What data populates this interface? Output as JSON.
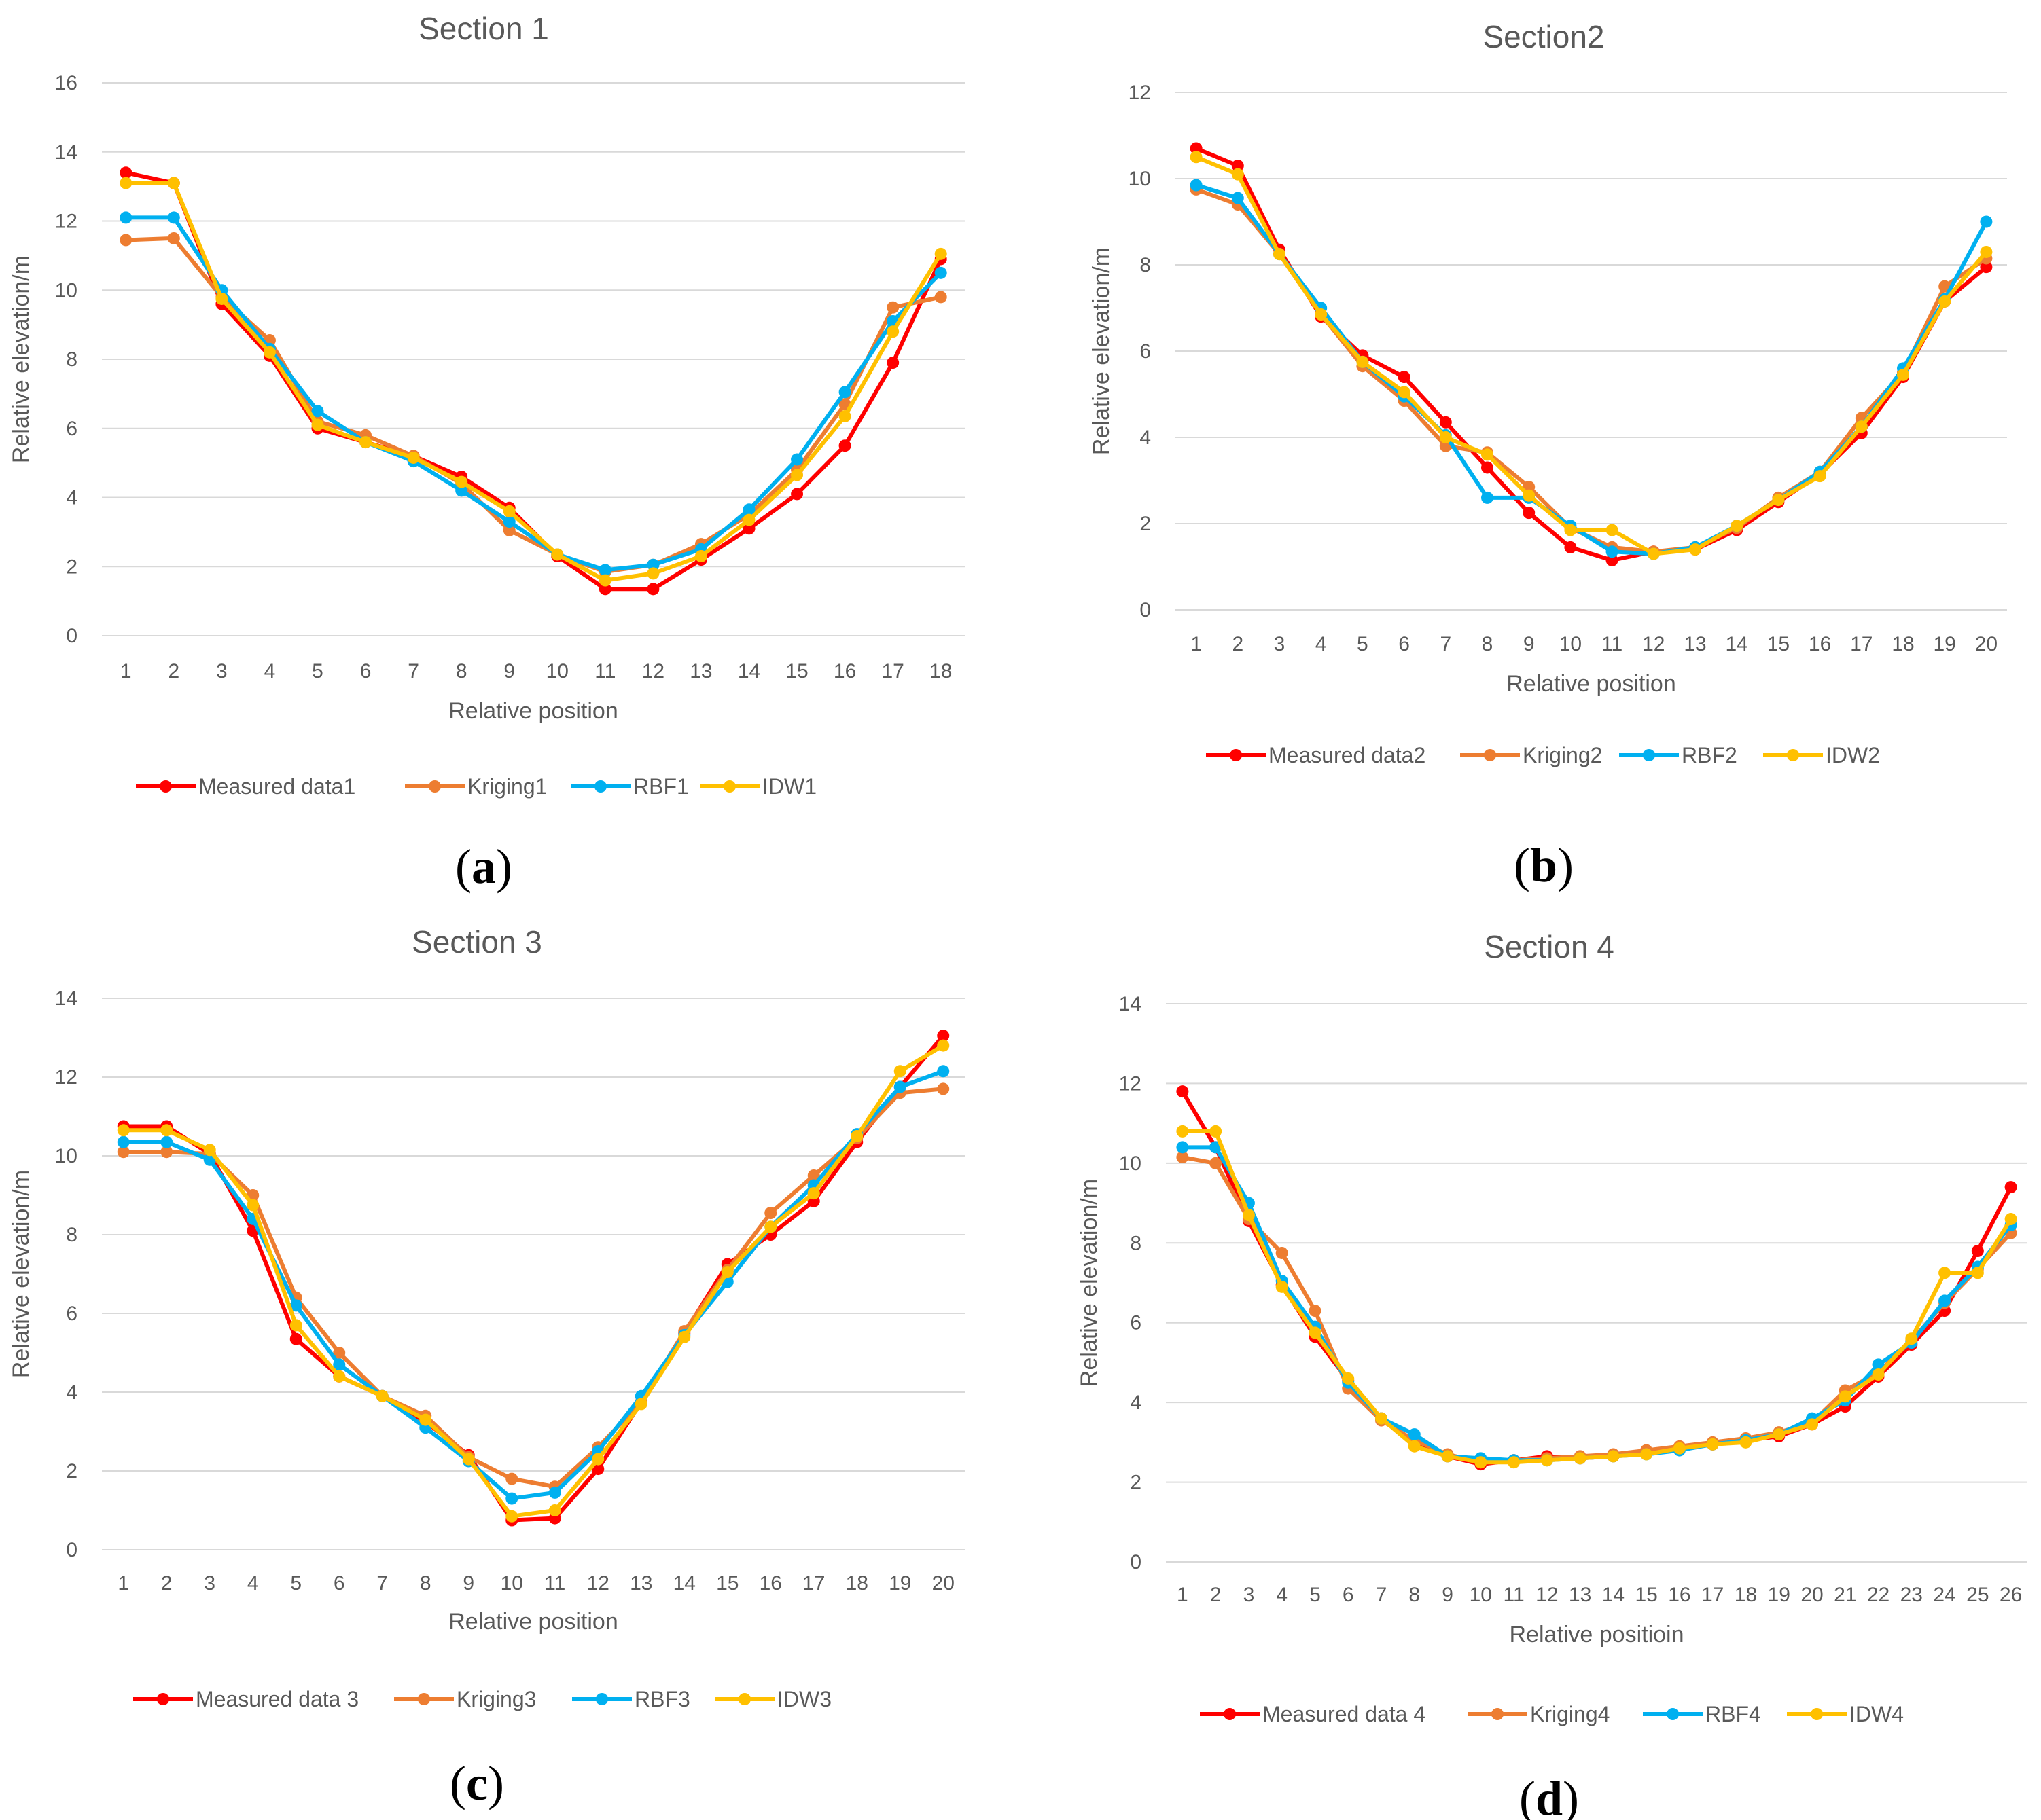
{
  "chart_data": [
    {
      "type": "line",
      "panel_label": "a",
      "title": "Section 1",
      "xlabel": "Relative position",
      "ylabel": "Relative elevation/m",
      "categories": [
        "1",
        "2",
        "3",
        "4",
        "5",
        "6",
        "7",
        "8",
        "9",
        "10",
        "11",
        "12",
        "13",
        "14",
        "15",
        "16",
        "17",
        "18"
      ],
      "yticks": [
        "0",
        "2",
        "4",
        "6",
        "8",
        "10",
        "12",
        "14",
        "16"
      ],
      "ylim": [
        0,
        16
      ],
      "grid": true,
      "legend": "bottom",
      "series": [
        {
          "name": "Measured data1",
          "color": "#ff0000",
          "values": [
            13.4,
            13.1,
            9.6,
            8.1,
            6.0,
            5.6,
            5.2,
            4.6,
            3.7,
            2.3,
            1.35,
            1.35,
            2.2,
            3.1,
            4.1,
            5.5,
            7.9,
            10.9
          ]
        },
        {
          "name": "Kriging1",
          "color": "#ed7d31",
          "values": [
            11.45,
            11.5,
            9.8,
            8.55,
            6.2,
            5.8,
            5.2,
            4.4,
            3.05,
            2.35,
            1.85,
            2.05,
            2.65,
            3.5,
            4.8,
            6.7,
            9.5,
            9.8
          ]
        },
        {
          "name": "RBF1",
          "color": "#00b0f0",
          "values": [
            12.1,
            12.1,
            10.0,
            8.3,
            6.5,
            5.6,
            5.05,
            4.2,
            3.3,
            2.35,
            1.9,
            2.05,
            2.5,
            3.65,
            5.1,
            7.05,
            9.1,
            10.5
          ]
        },
        {
          "name": "IDW1",
          "color": "#ffc000",
          "values": [
            13.1,
            13.1,
            9.75,
            8.2,
            6.1,
            5.6,
            5.15,
            4.45,
            3.6,
            2.35,
            1.6,
            1.8,
            2.3,
            3.35,
            4.65,
            6.35,
            8.8,
            11.05
          ]
        }
      ]
    },
    {
      "type": "line",
      "panel_label": "b",
      "title": "Section2",
      "xlabel": "Relative position",
      "ylabel": "Relative elevation/m",
      "categories": [
        "1",
        "2",
        "3",
        "4",
        "5",
        "6",
        "7",
        "8",
        "9",
        "10",
        "11",
        "12",
        "13",
        "14",
        "15",
        "16",
        "17",
        "18",
        "19",
        "20"
      ],
      "yticks": [
        "0",
        "2",
        "4",
        "6",
        "8",
        "10",
        "12"
      ],
      "ylim": [
        0,
        12
      ],
      "grid": true,
      "legend": "bottom",
      "series": [
        {
          "name": "Measured data2",
          "color": "#ff0000",
          "values": [
            10.7,
            10.3,
            8.35,
            6.8,
            5.9,
            5.4,
            4.35,
            3.3,
            2.25,
            1.45,
            1.15,
            1.35,
            1.4,
            1.85,
            2.5,
            3.15,
            4.1,
            5.4,
            7.15,
            7.95
          ]
        },
        {
          "name": "Kriging2",
          "color": "#ed7d31",
          "values": [
            9.75,
            9.4,
            8.25,
            6.85,
            5.65,
            4.85,
            3.8,
            3.65,
            2.85,
            1.9,
            1.45,
            1.35,
            1.45,
            1.9,
            2.6,
            3.2,
            4.45,
            5.5,
            7.5,
            8.15
          ]
        },
        {
          "name": "RBF2",
          "color": "#00b0f0",
          "values": [
            9.85,
            9.55,
            8.25,
            7.0,
            5.75,
            4.95,
            4.05,
            2.6,
            2.6,
            1.95,
            1.35,
            1.3,
            1.45,
            1.95,
            2.55,
            3.2,
            4.25,
            5.6,
            7.2,
            9.0
          ]
        },
        {
          "name": "IDW2",
          "color": "#ffc000",
          "values": [
            10.5,
            10.1,
            8.25,
            6.85,
            5.75,
            5.05,
            4.0,
            3.6,
            2.65,
            1.85,
            1.85,
            1.3,
            1.4,
            1.95,
            2.55,
            3.1,
            4.25,
            5.45,
            7.15,
            8.3
          ]
        }
      ]
    },
    {
      "type": "line",
      "panel_label": "c",
      "title": "Section 3",
      "xlabel": "Relative position",
      "ylabel": "Relative elevation/m",
      "categories": [
        "1",
        "2",
        "3",
        "4",
        "5",
        "6",
        "7",
        "8",
        "9",
        "10",
        "11",
        "12",
        "13",
        "14",
        "15",
        "16",
        "17",
        "18",
        "19",
        "20"
      ],
      "yticks": [
        "0",
        "2",
        "4",
        "6",
        "8",
        "10",
        "12",
        "14"
      ],
      "ylim": [
        0,
        14
      ],
      "grid": true,
      "legend": "bottom",
      "series": [
        {
          "name": "Measured data 3",
          "color": "#ff0000",
          "values": [
            10.75,
            10.75,
            10.05,
            8.1,
            5.35,
            4.4,
            3.9,
            3.25,
            2.4,
            0.75,
            0.8,
            2.05,
            3.75,
            5.5,
            7.25,
            8.0,
            8.85,
            10.35,
            11.75,
            13.05
          ]
        },
        {
          "name": "Kriging3",
          "color": "#ed7d31",
          "values": [
            10.1,
            10.1,
            10.05,
            9.0,
            6.4,
            5.0,
            3.9,
            3.4,
            2.35,
            1.8,
            1.6,
            2.6,
            3.75,
            5.55,
            7.1,
            8.55,
            9.5,
            10.45,
            11.6,
            11.7
          ]
        },
        {
          "name": "RBF3",
          "color": "#00b0f0",
          "values": [
            10.35,
            10.35,
            9.9,
            8.4,
            6.2,
            4.7,
            3.9,
            3.1,
            2.25,
            1.3,
            1.45,
            2.5,
            3.9,
            5.45,
            6.8,
            8.2,
            9.25,
            10.55,
            11.75,
            12.15
          ]
        },
        {
          "name": "IDW3",
          "color": "#ffc000",
          "values": [
            10.65,
            10.65,
            10.15,
            8.75,
            5.7,
            4.4,
            3.9,
            3.3,
            2.3,
            0.85,
            1.0,
            2.3,
            3.7,
            5.4,
            7.05,
            8.2,
            9.05,
            10.5,
            12.15,
            12.8
          ]
        }
      ]
    },
    {
      "type": "line",
      "panel_label": "d",
      "title": "Section 4",
      "xlabel": "Relative positioin",
      "ylabel": "Relative elevation/m",
      "categories": [
        "1",
        "2",
        "3",
        "4",
        "5",
        "6",
        "7",
        "8",
        "9",
        "10",
        "11",
        "12",
        "13",
        "14",
        "15",
        "16",
        "17",
        "18",
        "19",
        "20",
        "21",
        "22",
        "23",
        "24",
        "25",
        "26"
      ],
      "yticks": [
        "0",
        "2",
        "4",
        "6",
        "8",
        "10",
        "12",
        "14"
      ],
      "ylim": [
        0,
        14
      ],
      "grid": true,
      "legend": "bottom",
      "series": [
        {
          "name": "Measured data 4",
          "color": "#ff0000",
          "values": [
            11.8,
            10.4,
            8.55,
            6.95,
            5.65,
            4.55,
            3.6,
            3.0,
            2.65,
            2.45,
            2.55,
            2.65,
            2.6,
            2.65,
            2.75,
            2.85,
            2.95,
            3.05,
            3.15,
            3.45,
            3.9,
            4.65,
            5.45,
            6.3,
            7.8,
            9.4
          ]
        },
        {
          "name": "Kriging4",
          "color": "#ed7d31",
          "values": [
            10.15,
            10.0,
            8.6,
            7.75,
            6.3,
            4.35,
            3.55,
            3.05,
            2.7,
            2.5,
            2.55,
            2.6,
            2.65,
            2.7,
            2.8,
            2.9,
            3.0,
            3.1,
            3.25,
            3.5,
            4.3,
            4.75,
            5.55,
            6.5,
            7.35,
            8.25
          ]
        },
        {
          "name": "RBF4",
          "color": "#00b0f0",
          "values": [
            10.4,
            10.4,
            9.0,
            7.05,
            5.9,
            4.5,
            3.6,
            3.2,
            2.65,
            2.6,
            2.55,
            2.55,
            2.6,
            2.65,
            2.7,
            2.8,
            2.95,
            3.05,
            3.2,
            3.6,
            4.05,
            4.95,
            5.5,
            6.55,
            7.4,
            8.45
          ]
        },
        {
          "name": "IDW4",
          "color": "#ffc000",
          "values": [
            10.8,
            10.8,
            8.7,
            6.9,
            5.75,
            4.6,
            3.6,
            2.9,
            2.65,
            2.5,
            2.5,
            2.55,
            2.6,
            2.65,
            2.7,
            2.85,
            2.95,
            3.0,
            3.2,
            3.45,
            4.15,
            4.7,
            5.6,
            7.25,
            7.25,
            8.6
          ]
        }
      ]
    }
  ]
}
